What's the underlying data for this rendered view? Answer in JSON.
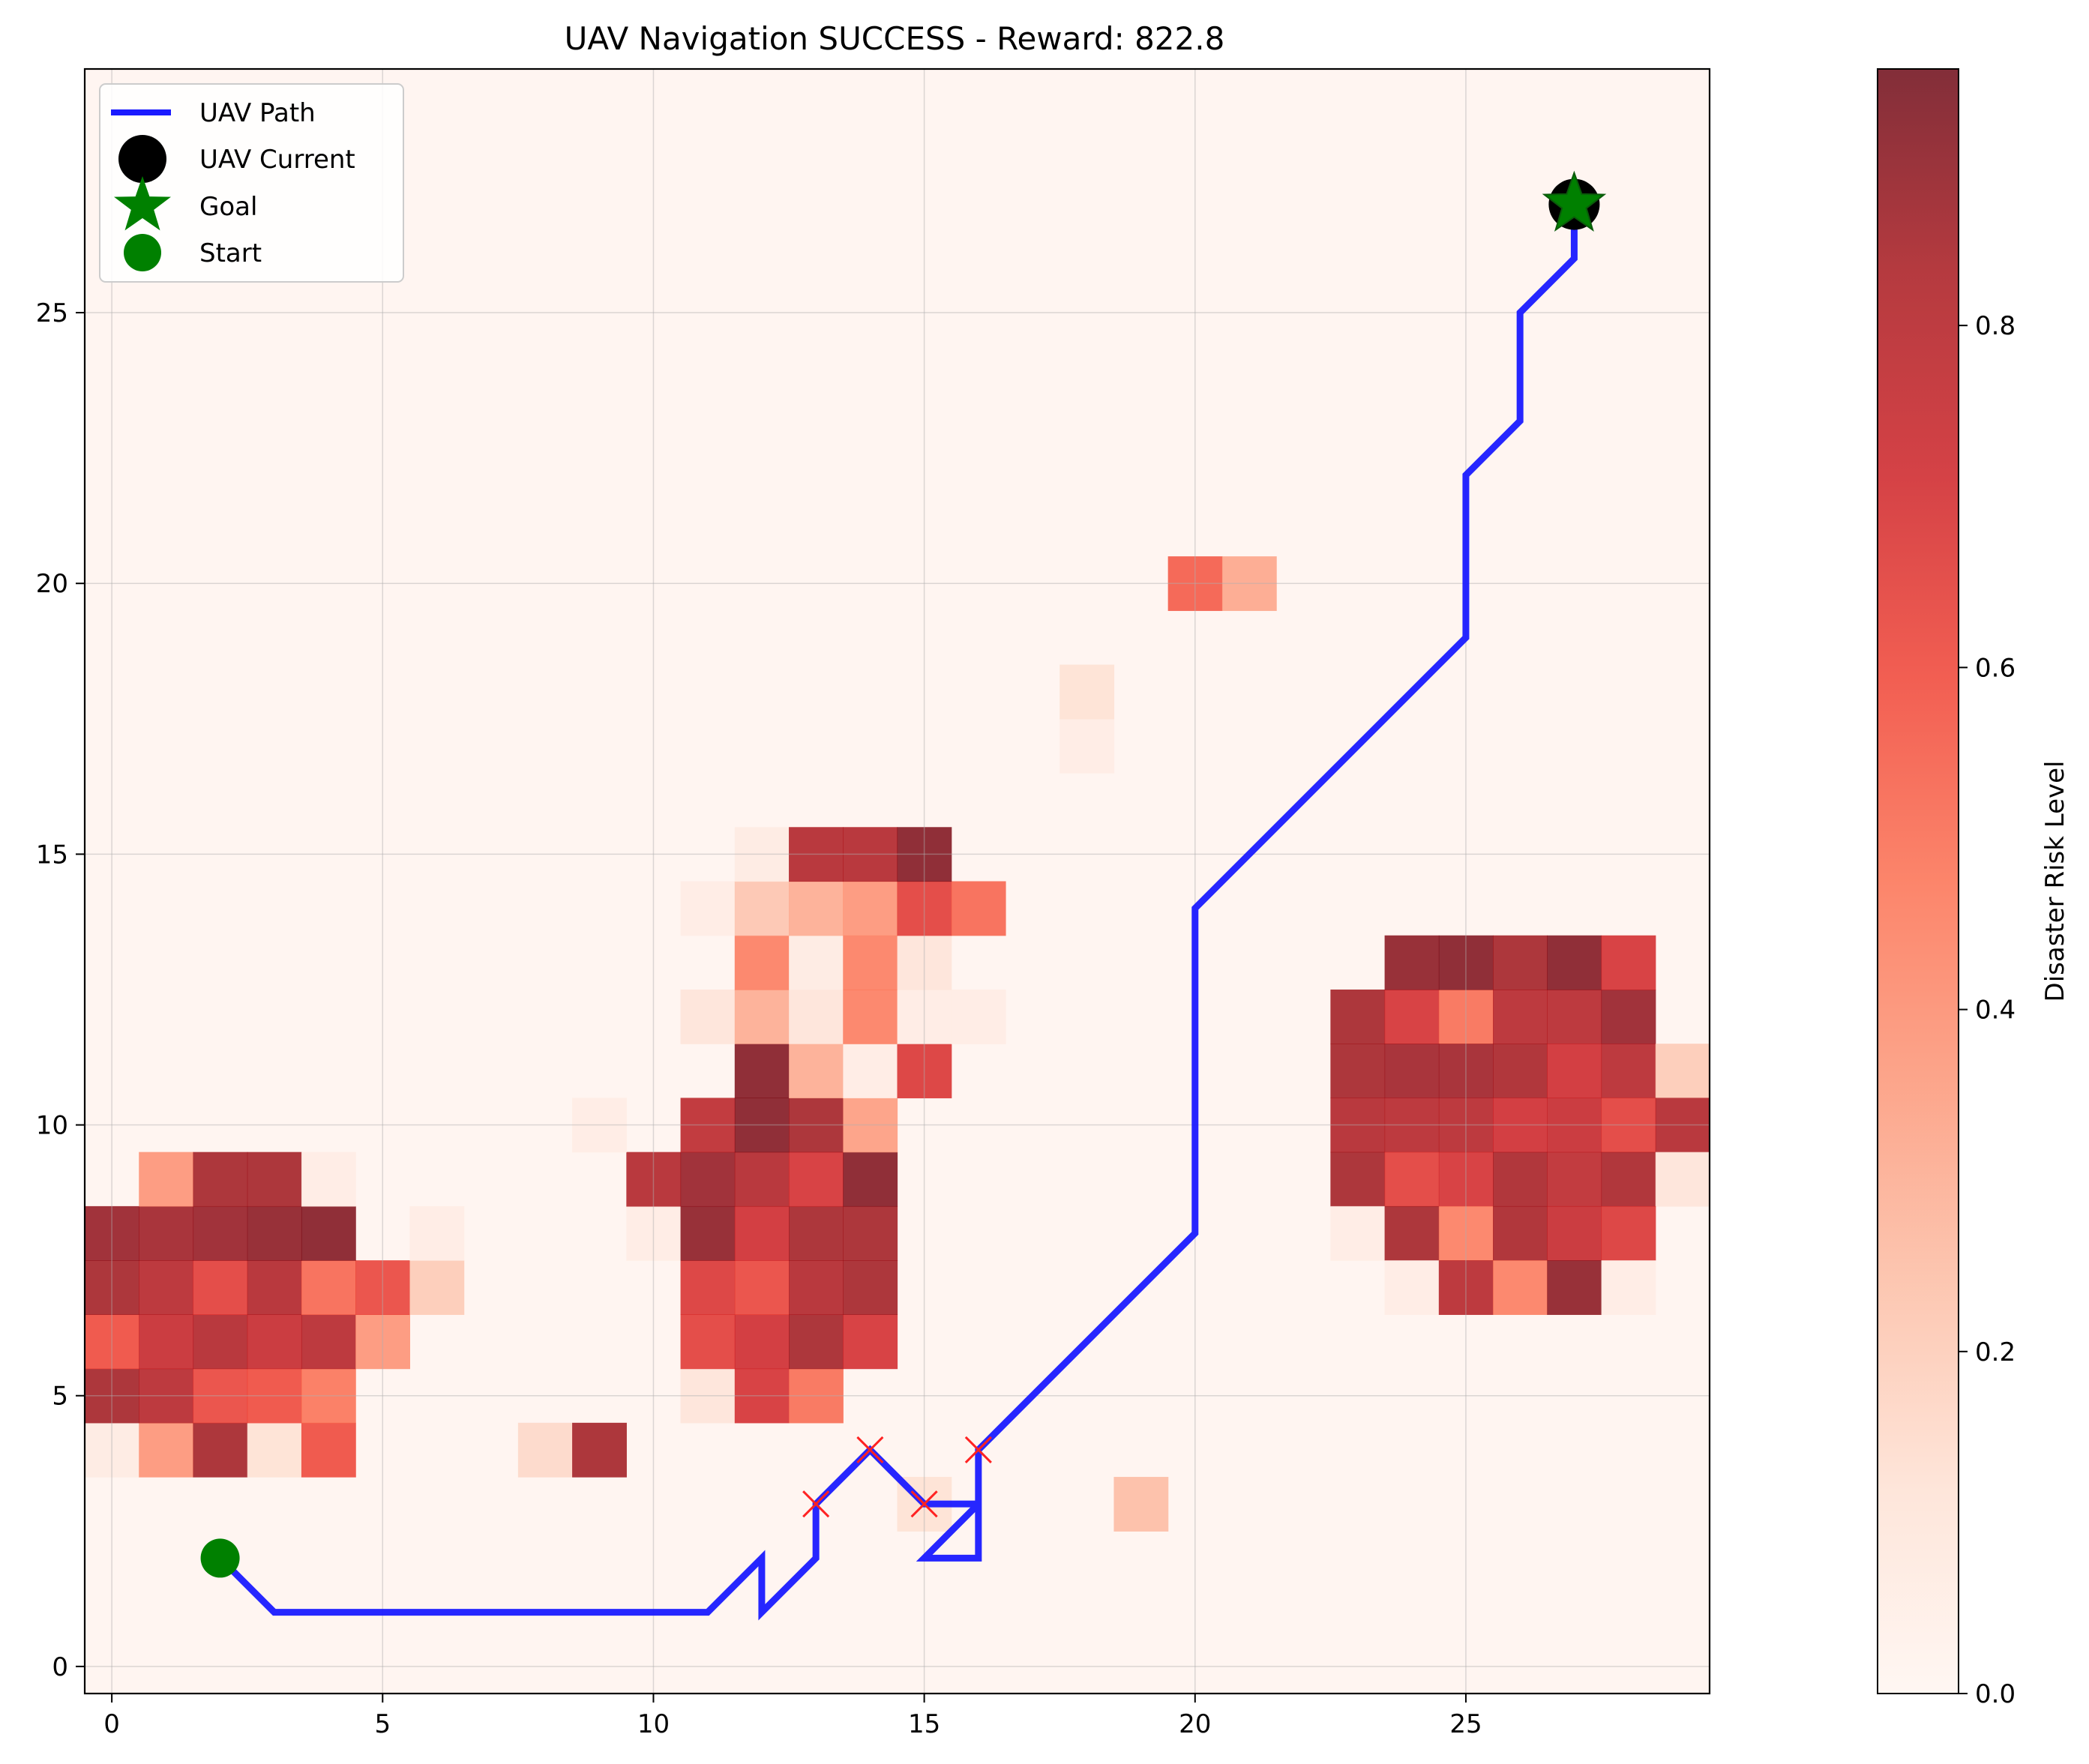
{
  "chart_data": [
    {
      "type": "heatmap",
      "title": "UAV Navigation SUCCESS - Reward: 822.8",
      "xlabel": "",
      "ylabel": "",
      "xlim": [
        -0.5,
        29.5
      ],
      "ylim": [
        -0.5,
        29.5
      ],
      "x_ticks": [
        0,
        5,
        10,
        15,
        20,
        25
      ],
      "y_ticks": [
        0,
        5,
        10,
        15,
        20,
        25
      ],
      "grid": true,
      "colormap": "Reds",
      "color_range": [
        0.0,
        0.95
      ],
      "risk_cells": [
        [
          0,
          4,
          0.06
        ],
        [
          1,
          4,
          0.38
        ],
        [
          2,
          4,
          0.85
        ],
        [
          3,
          4,
          0.12
        ],
        [
          4,
          4,
          0.6
        ],
        [
          8,
          4,
          0.15
        ],
        [
          9,
          4,
          0.85
        ],
        [
          0,
          5,
          0.85
        ],
        [
          1,
          5,
          0.8
        ],
        [
          2,
          5,
          0.62
        ],
        [
          3,
          5,
          0.6
        ],
        [
          4,
          5,
          0.48
        ],
        [
          11,
          5,
          0.1
        ],
        [
          12,
          5,
          0.7
        ],
        [
          13,
          5,
          0.5
        ],
        [
          0,
          6,
          0.6
        ],
        [
          1,
          6,
          0.75
        ],
        [
          2,
          6,
          0.82
        ],
        [
          3,
          6,
          0.75
        ],
        [
          4,
          6,
          0.8
        ],
        [
          5,
          6,
          0.38
        ],
        [
          11,
          6,
          0.65
        ],
        [
          12,
          6,
          0.72
        ],
        [
          13,
          6,
          0.85
        ],
        [
          14,
          6,
          0.7
        ],
        [
          0,
          7,
          0.85
        ],
        [
          1,
          7,
          0.8
        ],
        [
          2,
          7,
          0.65
        ],
        [
          3,
          7,
          0.82
        ],
        [
          4,
          7,
          0.52
        ],
        [
          5,
          7,
          0.62
        ],
        [
          6,
          7,
          0.2
        ],
        [
          11,
          7,
          0.68
        ],
        [
          12,
          7,
          0.62
        ],
        [
          13,
          7,
          0.82
        ],
        [
          14,
          7,
          0.85
        ],
        [
          0,
          8,
          0.88
        ],
        [
          1,
          8,
          0.86
        ],
        [
          2,
          8,
          0.88
        ],
        [
          3,
          8,
          0.9
        ],
        [
          4,
          8,
          0.92
        ],
        [
          6,
          8,
          0.05
        ],
        [
          10,
          8,
          0.05
        ],
        [
          11,
          8,
          0.9
        ],
        [
          12,
          8,
          0.72
        ],
        [
          13,
          8,
          0.85
        ],
        [
          14,
          8,
          0.85
        ],
        [
          1,
          9,
          0.38
        ],
        [
          2,
          9,
          0.85
        ],
        [
          3,
          9,
          0.85
        ],
        [
          4,
          9,
          0.05
        ],
        [
          10,
          9,
          0.82
        ],
        [
          11,
          9,
          0.88
        ],
        [
          12,
          9,
          0.82
        ],
        [
          13,
          9,
          0.7
        ],
        [
          14,
          9,
          0.92
        ],
        [
          9,
          10,
          0.05
        ],
        [
          11,
          10,
          0.78
        ],
        [
          12,
          10,
          0.92
        ],
        [
          13,
          10,
          0.85
        ],
        [
          14,
          10,
          0.35
        ],
        [
          12,
          11,
          0.92
        ],
        [
          13,
          11,
          0.3
        ],
        [
          14,
          11,
          0.05
        ],
        [
          15,
          11,
          0.68
        ],
        [
          11,
          12,
          0.1
        ],
        [
          12,
          12,
          0.3
        ],
        [
          13,
          12,
          0.1
        ],
        [
          14,
          12,
          0.45
        ],
        [
          15,
          12,
          0.05
        ],
        [
          16,
          12,
          0.05
        ],
        [
          12,
          13,
          0.45
        ],
        [
          13,
          13,
          0.06
        ],
        [
          14,
          13,
          0.45
        ],
        [
          15,
          13,
          0.1
        ],
        [
          11,
          14,
          0.05
        ],
        [
          12,
          14,
          0.22
        ],
        [
          13,
          14,
          0.3
        ],
        [
          14,
          14,
          0.38
        ],
        [
          15,
          14,
          0.65
        ],
        [
          16,
          14,
          0.52
        ],
        [
          12,
          15,
          0.06
        ],
        [
          13,
          15,
          0.82
        ],
        [
          14,
          15,
          0.82
        ],
        [
          15,
          15,
          0.92
        ],
        [
          18,
          17,
          0.05
        ],
        [
          18,
          18,
          0.12
        ],
        [
          20,
          20,
          0.55
        ],
        [
          21,
          20,
          0.32
        ],
        [
          19,
          3,
          0.25
        ],
        [
          15,
          3,
          0.12
        ],
        [
          23,
          12,
          0.85
        ],
        [
          24,
          12,
          0.7
        ],
        [
          25,
          12,
          0.5
        ],
        [
          26,
          12,
          0.8
        ],
        [
          27,
          12,
          0.8
        ],
        [
          28,
          12,
          0.88
        ],
        [
          24,
          13,
          0.9
        ],
        [
          25,
          13,
          0.92
        ],
        [
          26,
          13,
          0.85
        ],
        [
          27,
          13,
          0.92
        ],
        [
          28,
          13,
          0.7
        ],
        [
          23,
          11,
          0.85
        ],
        [
          24,
          11,
          0.86
        ],
        [
          25,
          11,
          0.86
        ],
        [
          26,
          11,
          0.84
        ],
        [
          27,
          11,
          0.72
        ],
        [
          28,
          11,
          0.8
        ],
        [
          29,
          11,
          0.2
        ],
        [
          23,
          10,
          0.82
        ],
        [
          24,
          10,
          0.8
        ],
        [
          25,
          10,
          0.8
        ],
        [
          26,
          10,
          0.72
        ],
        [
          27,
          10,
          0.75
        ],
        [
          28,
          10,
          0.65
        ],
        [
          29,
          10,
          0.82
        ],
        [
          23,
          9,
          0.85
        ],
        [
          24,
          9,
          0.65
        ],
        [
          25,
          9,
          0.7
        ],
        [
          26,
          9,
          0.84
        ],
        [
          27,
          9,
          0.78
        ],
        [
          28,
          9,
          0.84
        ],
        [
          29,
          9,
          0.1
        ],
        [
          23,
          8,
          0.05
        ],
        [
          24,
          8,
          0.85
        ],
        [
          25,
          8,
          0.45
        ],
        [
          26,
          8,
          0.84
        ],
        [
          27,
          8,
          0.75
        ],
        [
          28,
          8,
          0.68
        ],
        [
          24,
          7,
          0.05
        ],
        [
          25,
          7,
          0.8
        ],
        [
          26,
          7,
          0.45
        ],
        [
          27,
          7,
          0.9
        ],
        [
          28,
          7,
          0.05
        ]
      ],
      "uav_path": {
        "name": "UAV Path",
        "color": "#1a1aff",
        "x": [
          2,
          3,
          11,
          12,
          12,
          13,
          13,
          14,
          15,
          16,
          16,
          15,
          16,
          16,
          20,
          20,
          25,
          25,
          26,
          26,
          27,
          27
        ],
        "y": [
          2,
          1,
          1,
          2,
          1,
          2,
          3,
          4,
          3,
          3,
          2,
          2,
          3,
          4,
          8,
          14,
          19,
          22,
          23,
          25,
          26,
          27
        ]
      },
      "collision_marks": {
        "color": "#ff2222",
        "x": [
          13,
          14,
          15,
          16
        ],
        "y": [
          3,
          4,
          3,
          4
        ]
      },
      "uav_current": {
        "name": "UAV Current",
        "x": 27,
        "y": 27,
        "color": "#000000"
      },
      "goal": {
        "name": "Goal",
        "x": 27,
        "y": 27,
        "color": "#008000"
      },
      "start": {
        "name": "Start",
        "x": 2,
        "y": 2,
        "color": "#008000"
      },
      "legend": {
        "placement": "top-left",
        "entries": [
          "UAV Path",
          "UAV Current",
          "Goal",
          "Start"
        ]
      },
      "colorbar": {
        "label": "Disaster Risk Level",
        "ticks": [
          "0.0",
          "0.2",
          "0.4",
          "0.6",
          "0.8"
        ]
      }
    }
  ]
}
